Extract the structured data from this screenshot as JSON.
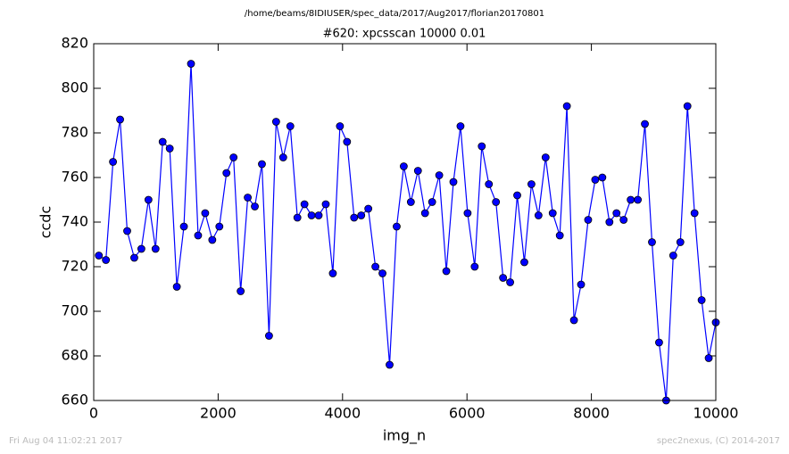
{
  "chart_data": {
    "type": "line",
    "title": "/home/beams/8IDIUSER/spec_data/2017/Aug2017/florian20170801",
    "subtitle": "#620: xpcsscan 10000 0.01",
    "x_label": "img_n",
    "y_label": "ccdc",
    "annotations": [
      "Fri Aug 04 11:02:21 2017",
      "spec2nexus, (C) 2014-2017"
    ],
    "xlim": [
      0,
      10000
    ],
    "xticks": [
      0,
      2000,
      4000,
      6000,
      8000,
      10000
    ],
    "ylim": [
      660,
      820
    ],
    "yticks": [
      660,
      680,
      700,
      720,
      740,
      760,
      780,
      800,
      820
    ],
    "grid": false,
    "x": [
      82,
      196,
      310,
      424,
      538,
      652,
      766,
      880,
      994,
      1108,
      1222,
      1336,
      1450,
      1564,
      1678,
      1792,
      1906,
      2020,
      2134,
      2248,
      2362,
      2476,
      2590,
      2704,
      2818,
      2932,
      3046,
      3160,
      3274,
      3388,
      3502,
      3616,
      3730,
      3844,
      3958,
      4072,
      4186,
      4300,
      4414,
      4528,
      4642,
      4756,
      4870,
      4984,
      5098,
      5212,
      5326,
      5440,
      5554,
      5668,
      5782,
      5896,
      6010,
      6124,
      6238,
      6352,
      6466,
      6580,
      6694,
      6808,
      6922,
      7036,
      7150,
      7264,
      7378,
      7492,
      7606,
      7720,
      7834,
      7948,
      8062,
      8176,
      8290,
      8404,
      8518,
      8632,
      8746,
      8860,
      8974,
      9088,
      9202,
      9316,
      9430,
      9544,
      9658,
      9772,
      9886,
      10000
    ],
    "series": [
      {
        "name": "ccdc",
        "color": "#0000ff",
        "marker_color": "#0000ff",
        "values": [
          725,
          723,
          767,
          786,
          736,
          724,
          728,
          750,
          728,
          776,
          773,
          711,
          738,
          811,
          734,
          744,
          732,
          738,
          762,
          769,
          709,
          751,
          747,
          766,
          689,
          785,
          769,
          783,
          742,
          748,
          743,
          743,
          748,
          717,
          783,
          776,
          742,
          743,
          746,
          720,
          717,
          676,
          738,
          765,
          749,
          763,
          744,
          749,
          761,
          718,
          758,
          783,
          744,
          720,
          774,
          757,
          749,
          715,
          713,
          752,
          722,
          757,
          743,
          769,
          744,
          734,
          792,
          696,
          712,
          741,
          759,
          760,
          740,
          744,
          741,
          750,
          750,
          784,
          731,
          686,
          660,
          725,
          731,
          792,
          744,
          705,
          679,
          695
        ]
      }
    ]
  }
}
